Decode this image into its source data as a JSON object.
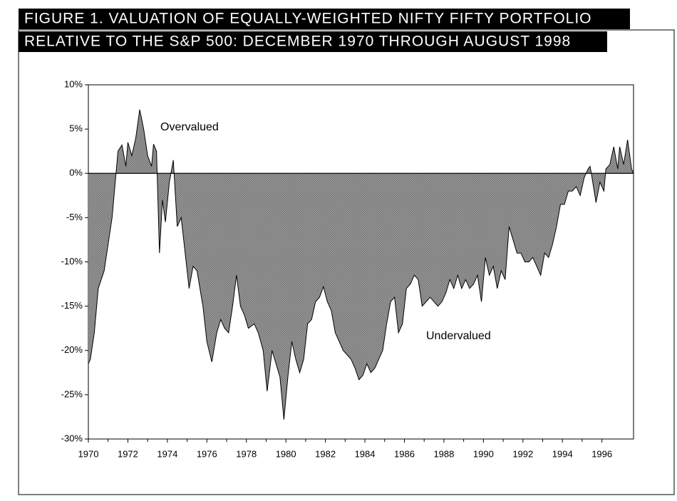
{
  "chart_data": {
    "type": "area",
    "title": "FIGURE 1. VALUATION OF EQUALLY-WEIGHTED NIFTY FIFTY PORTFOLIO",
    "subtitle": "RELATIVE TO THE S&P 500: DECEMBER 1970 THROUGH AUGUST 1998",
    "annotations": [
      "Overvalued",
      "Undervalued"
    ],
    "color": "#9a9a9a",
    "x": [
      1970.0,
      1970.1,
      1970.3,
      1970.5,
      1970.8,
      1971.0,
      1971.2,
      1971.4,
      1971.5,
      1971.7,
      1971.9,
      1972.0,
      1972.2,
      1972.4,
      1972.6,
      1972.8,
      1973.0,
      1973.2,
      1973.3,
      1973.45,
      1973.6,
      1973.75,
      1973.9,
      1974.1,
      1974.3,
      1974.5,
      1974.7,
      1974.9,
      1975.1,
      1975.3,
      1975.5,
      1975.8,
      1976.0,
      1976.25,
      1976.5,
      1976.7,
      1976.9,
      1977.1,
      1977.3,
      1977.5,
      1977.7,
      1977.9,
      1978.1,
      1978.4,
      1978.6,
      1978.85,
      1979.05,
      1979.3,
      1979.5,
      1979.7,
      1979.9,
      1980.1,
      1980.3,
      1980.5,
      1980.7,
      1980.9,
      1981.1,
      1981.3,
      1981.5,
      1981.7,
      1981.9,
      1982.1,
      1982.3,
      1982.5,
      1982.7,
      1982.9,
      1983.1,
      1983.3,
      1983.5,
      1983.7,
      1983.9,
      1984.1,
      1984.3,
      1984.5,
      1984.7,
      1984.9,
      1985.1,
      1985.3,
      1985.5,
      1985.7,
      1985.9,
      1986.1,
      1986.3,
      1986.5,
      1986.7,
      1986.9,
      1987.1,
      1987.3,
      1987.5,
      1987.7,
      1987.9,
      1988.1,
      1988.3,
      1988.5,
      1988.7,
      1988.9,
      1989.1,
      1989.3,
      1989.5,
      1989.7,
      1989.9,
      1990.1,
      1990.3,
      1990.5,
      1990.7,
      1990.9,
      1991.1,
      1991.3,
      1991.5,
      1991.7,
      1991.9,
      1992.1,
      1992.3,
      1992.5,
      1992.7,
      1992.9,
      1993.1,
      1993.3,
      1993.5,
      1993.7,
      1993.9,
      1994.1,
      1994.3,
      1994.5,
      1994.7,
      1994.9,
      1995.1,
      1995.3,
      1995.4,
      1995.5,
      1995.7,
      1995.9,
      1996.1,
      1996.2,
      1996.4,
      1996.6,
      1996.8,
      1996.9,
      1997.1,
      1997.3,
      1997.5,
      1997.6
    ],
    "values": [
      -21.5,
      -21,
      -18,
      -13,
      -11,
      -8,
      -5,
      0,
      2.5,
      3.2,
      0.8,
      3.5,
      2,
      4,
      7.2,
      5,
      2,
      0.8,
      3.3,
      2.5,
      -9,
      -3,
      -5.5,
      -1,
      1.5,
      -6,
      -5,
      -9,
      -13,
      -10.5,
      -11,
      -15,
      -19,
      -21.3,
      -18,
      -16.5,
      -17.5,
      -18,
      -15,
      -11.5,
      -15,
      -16,
      -17.5,
      -17,
      -18,
      -20,
      -24.6,
      -20,
      -21.5,
      -23,
      -27.8,
      -23,
      -19,
      -21,
      -22.5,
      -21,
      -17,
      -16.5,
      -14.5,
      -14,
      -12.8,
      -14.5,
      -15.5,
      -18,
      -19,
      -20,
      -20.5,
      -21,
      -22,
      -23.3,
      -22.8,
      -21.5,
      -22.5,
      -22,
      -21,
      -20,
      -17,
      -14.5,
      -14,
      -18,
      -17,
      -13,
      -12.5,
      -11.5,
      -12,
      -15,
      -14.5,
      -14,
      -14.5,
      -15,
      -14.5,
      -13.5,
      -12,
      -13,
      -11.5,
      -13,
      -12,
      -13,
      -12.5,
      -11.5,
      -14.5,
      -9.5,
      -11.5,
      -10.5,
      -13,
      -11,
      -12,
      -6,
      -7.5,
      -9,
      -9,
      -10,
      -10,
      -9.5,
      -10.5,
      -11.5,
      -9,
      -9.5,
      -8,
      -6,
      -3.5,
      -3.5,
      -2,
      -2,
      -1.5,
      -2.5,
      -0.5,
      0.5,
      0.8,
      -0.5,
      -3.3,
      -1,
      -2,
      0.5,
      1,
      3,
      0.5,
      3,
      1,
      3.8,
      0.5,
      0
    ],
    "xlim": [
      1970,
      1997.6
    ],
    "xticks": [
      1970,
      1972,
      1974,
      1976,
      1978,
      1980,
      1982,
      1984,
      1986,
      1988,
      1990,
      1992,
      1994,
      1996
    ],
    "ylim": [
      -30,
      10
    ],
    "yticks": [
      {
        "value": -30,
        "label": "-30%"
      },
      {
        "value": -25,
        "label": "-25%"
      },
      {
        "value": -20,
        "label": "-20%"
      },
      {
        "value": -15,
        "label": "-15%"
      },
      {
        "value": -10,
        "label": "-10%"
      },
      {
        "value": -5,
        "label": "-5%"
      },
      {
        "value": 0,
        "label": "0%"
      },
      {
        "value": 5,
        "label": "5%"
      },
      {
        "value": 10,
        "label": "10%"
      }
    ]
  }
}
